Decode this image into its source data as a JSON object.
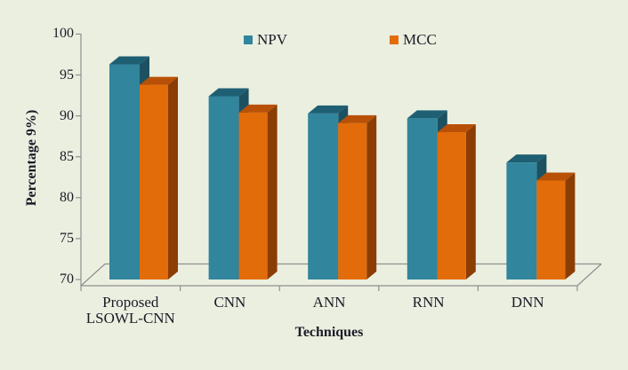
{
  "chart_data": {
    "type": "bar",
    "style": "3d-clustered-column",
    "title": "",
    "xlabel": "Techniques",
    "ylabel": "Percentage 9%)",
    "categories": [
      "Proposed\nLSOWL-CNN",
      "CNN",
      "ANN",
      "RNN",
      "DNN"
    ],
    "series": [
      {
        "name": "NPV",
        "color": "#31859C",
        "color_top": "#1F5F73",
        "color_side": "#1C5162",
        "values": [
          96.3,
          92.4,
          90.3,
          89.7,
          84.3
        ]
      },
      {
        "name": "MCC",
        "color": "#E36C0A",
        "color_top": "#B85107",
        "color_side": "#8C3D04",
        "values": [
          93.8,
          90.4,
          89.1,
          88.0,
          82.1
        ]
      }
    ],
    "ylim": [
      70,
      100
    ],
    "yticks": [
      100,
      95,
      90,
      85,
      80,
      75,
      70
    ],
    "legend_position": "top",
    "grid": false
  },
  "colors": {
    "background": "#EBEFE0",
    "axis": "#8F8F8F",
    "text": "#1B1B26"
  }
}
